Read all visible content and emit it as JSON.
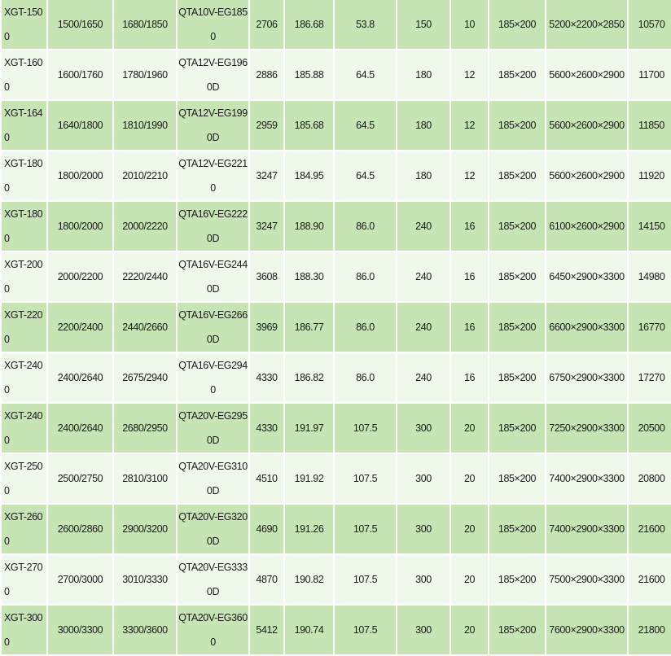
{
  "table": {
    "rows": [
      [
        "XGT-1500",
        "1500/1650",
        "1680/1850",
        "QTA10V-EG1850",
        "2706",
        "186.68",
        "53.8",
        "150",
        "10",
        "185×200",
        "5200×2200×2850",
        "10570"
      ],
      [
        "XGT-1600",
        "1600/1760",
        "1780/1960",
        "QTA12V-EG1960D",
        "2886",
        "185.88",
        "64.5",
        "180",
        "12",
        "185×200",
        "5600×2600×2900",
        "11700"
      ],
      [
        "XGT-1640",
        "1640/1800",
        "1810/1990",
        "QTA12V-EG1990D",
        "2959",
        "185.68",
        "64.5",
        "180",
        "12",
        "185×200",
        "5600×2600×2900",
        "11850"
      ],
      [
        "XGT-1800",
        "1800/2000",
        "2010/2210",
        "QTA12V-EG2210",
        "3247",
        "184.95",
        "64.5",
        "180",
        "12",
        "185×200",
        "5600×2600×2900",
        "11920"
      ],
      [
        "XGT-1800",
        "1800/2000",
        "2000/2220",
        "QTA16V-EG2220D",
        "3247",
        "188.90",
        "86.0",
        "240",
        "16",
        "185×200",
        "6100×2600×2900",
        "14150"
      ],
      [
        "XGT-2000",
        "2000/2200",
        "2220/2440",
        "QTA16V-EG2440D",
        "3608",
        "188.30",
        "86.0",
        "240",
        "16",
        "185×200",
        "6450×2900×3300",
        "14980"
      ],
      [
        "XGT-2200",
        "2200/2400",
        "2440/2660",
        "QTA16V-EG2660D",
        "3969",
        "186.77",
        "86.0",
        "240",
        "16",
        "185×200",
        "6600×2900×3300",
        "16770"
      ],
      [
        "XGT-2400",
        "2400/2640",
        "2675/2940",
        "QTA16V-EG2940",
        "4330",
        "186.82",
        "86.0",
        "240",
        "16",
        "185×200",
        "6750×2900×3300",
        "17270"
      ],
      [
        "XGT-2400",
        "2400/2640",
        "2680/2950",
        "QTA20V-EG2950D",
        "4330",
        "191.97",
        "107.5",
        "300",
        "20",
        "185×200",
        "7250×2900×3300",
        "20500"
      ],
      [
        "XGT-2500",
        "2500/2750",
        "2810/3100",
        "QTA20V-EG3100D",
        "4510",
        "191.92",
        "107.5",
        "300",
        "20",
        "185×200",
        "7400×2900×3300",
        "20800"
      ],
      [
        "XGT-2600",
        "2600/2860",
        "2900/3200",
        "QTA20V-EG3200D",
        "4690",
        "191.26",
        "107.5",
        "300",
        "20",
        "185×200",
        "7400×2900×3300",
        "21600"
      ],
      [
        "XGT-2700",
        "2700/3000",
        "3010/3330",
        "QTA20V-EG3330D",
        "4870",
        "190.82",
        "107.5",
        "300",
        "20",
        "185×200",
        "7500×2900×3300",
        "21600"
      ],
      [
        "XGT-3000",
        "3000/3300",
        "3300/3600",
        "QTA20V-EG3600",
        "5412",
        "190.74",
        "107.5",
        "300",
        "20",
        "185×200",
        "7600×2900×3300",
        "21800"
      ]
    ]
  },
  "colors": {
    "row_dark": "#c6e4b4",
    "row_light": "#f0f8ec",
    "grid": "#ffffff"
  }
}
